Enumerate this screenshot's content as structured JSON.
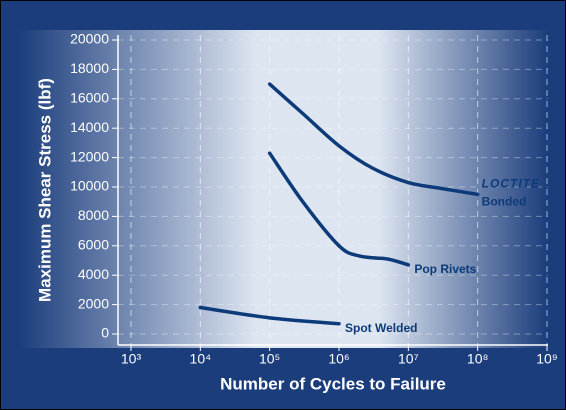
{
  "chart_data": {
    "type": "line",
    "xlabel": "Number of Cycles to Failure",
    "ylabel": "Maximum Shear Stress (lbf)",
    "xscale": "log",
    "xlim": [
      1000,
      1000000000
    ],
    "xticks": [
      {
        "value": 1000,
        "label": "10³"
      },
      {
        "value": 10000,
        "label": "10⁴"
      },
      {
        "value": 100000,
        "label": "10⁵"
      },
      {
        "value": 1000000,
        "label": "10⁶"
      },
      {
        "value": 10000000,
        "label": "10⁷"
      },
      {
        "value": 100000000,
        "label": "10⁸"
      },
      {
        "value": 1000000000,
        "label": "10⁹"
      }
    ],
    "ylim": [
      0,
      20000
    ],
    "yticks": [
      0,
      2000,
      4000,
      6000,
      8000,
      10000,
      12000,
      14000,
      16000,
      18000,
      20000
    ],
    "grid": true,
    "brand": "LOCTITE",
    "series": [
      {
        "name": "Bonded",
        "color": "#0d3b7a",
        "x": [
          100000,
          300000,
          1000000,
          3000000,
          10000000,
          30000000,
          100000000
        ],
        "values": [
          17000,
          15000,
          12800,
          11300,
          10300,
          9900,
          9500
        ]
      },
      {
        "name": "Pop Rivets",
        "color": "#0d3b7a",
        "x": [
          100000,
          300000,
          1000000,
          2000000,
          5000000,
          10000000
        ],
        "values": [
          12300,
          9000,
          6000,
          5300,
          5100,
          4700
        ]
      },
      {
        "name": "Spot Welded",
        "color": "#0d3b7a",
        "x": [
          10000,
          100000,
          1000000
        ],
        "values": [
          1800,
          1100,
          700
        ]
      }
    ]
  }
}
